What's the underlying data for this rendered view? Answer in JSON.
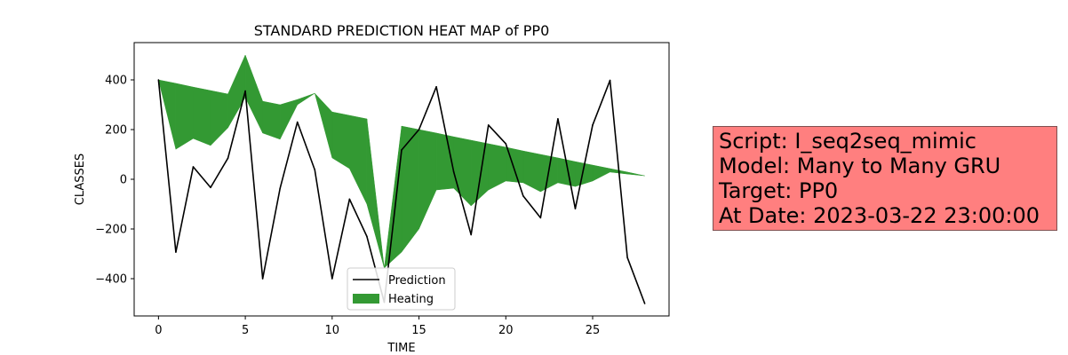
{
  "chart_data": {
    "type": "area",
    "title": "STANDARD PREDICTION HEAT MAP of PP0",
    "xlabel": "TIME",
    "ylabel": "CLASSES",
    "xlim": [
      -1.4,
      29.4
    ],
    "ylim": [
      -550,
      550
    ],
    "xticks": [
      0,
      5,
      10,
      15,
      20,
      25
    ],
    "yticks": [
      -400,
      -200,
      0,
      200,
      400
    ],
    "xtick_labels": [
      "0",
      "5",
      "10",
      "15",
      "20",
      "25"
    ],
    "ytick_labels": [
      "−400",
      "−200",
      "0",
      "200",
      "400"
    ],
    "legend": {
      "position": "lower center",
      "entries": [
        "Prediction",
        "Heating"
      ]
    },
    "colors": {
      "prediction": "#000000",
      "heating": "#339933"
    },
    "series": [
      {
        "name": "Prediction",
        "type": "line",
        "x": [
          0,
          1,
          2,
          3,
          4,
          5,
          6,
          7,
          8,
          9,
          10,
          11,
          12,
          13,
          14,
          15,
          16,
          17,
          18,
          19,
          20,
          21,
          22,
          23,
          24,
          25,
          26,
          27,
          28
        ],
        "values": [
          400,
          -293,
          50,
          -33,
          85,
          355,
          -400,
          -37,
          230,
          38,
          -400,
          -80,
          -230,
          -495,
          118,
          200,
          372,
          30,
          -223,
          218,
          143,
          -67,
          -155,
          243,
          -118,
          218,
          398,
          -315,
          -500
        ]
      },
      {
        "name": "Heating",
        "type": "fill_between",
        "x": [
          0,
          1,
          2,
          3,
          4,
          5,
          6,
          7,
          8,
          9,
          10,
          11,
          12,
          13,
          14,
          15,
          16,
          17,
          18,
          19,
          20,
          21,
          22,
          23,
          24,
          25,
          26,
          27,
          28
        ],
        "upper": [
          400,
          386,
          371,
          357,
          343,
          500,
          314,
          300,
          321,
          346,
          271,
          257,
          243,
          -357,
          214,
          200,
          186,
          171,
          157,
          143,
          129,
          114,
          100,
          86,
          71,
          57,
          43,
          29,
          14
        ],
        "lower": [
          400,
          121,
          164,
          136,
          207,
          329,
          186,
          161,
          300,
          346,
          86,
          43,
          -100,
          -357,
          -293,
          -200,
          -43,
          -36,
          -107,
          -43,
          -7,
          -14,
          -50,
          -14,
          -29,
          -7,
          29,
          21,
          14
        ]
      }
    ]
  },
  "info_box": {
    "script": "Script: I_seq2seq_mimic",
    "model": "Model: Many to Many GRU",
    "target": "Target: PP0",
    "date": "At Date: 2023-03-22 23:00:00"
  }
}
